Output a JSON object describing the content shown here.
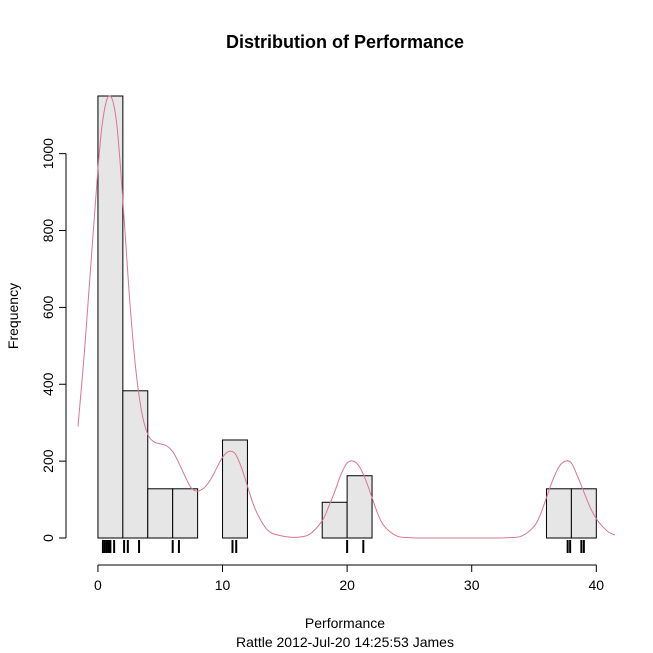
{
  "chart_data": {
    "type": "bar",
    "title": "Distribution of Performance",
    "xlabel": "Performance",
    "ylabel": "Frequency",
    "subtitle": "Rattle 2012-Jul-20 14:25:53 James",
    "xlim": [
      -1.6,
      41.5
    ],
    "ylim": [
      0,
      1150
    ],
    "x_ticks": [
      0,
      10,
      20,
      30,
      40
    ],
    "y_ticks": [
      0,
      200,
      400,
      600,
      800,
      1000
    ],
    "bins": [
      {
        "start": 0,
        "end": 2,
        "count": 1150
      },
      {
        "start": 2,
        "end": 4,
        "count": 383
      },
      {
        "start": 4,
        "end": 6,
        "count": 128
      },
      {
        "start": 6,
        "end": 8,
        "count": 128
      },
      {
        "start": 8,
        "end": 10,
        "count": 0
      },
      {
        "start": 10,
        "end": 12,
        "count": 255
      },
      {
        "start": 12,
        "end": 14,
        "count": 0
      },
      {
        "start": 14,
        "end": 16,
        "count": 0
      },
      {
        "start": 16,
        "end": 18,
        "count": 0
      },
      {
        "start": 18,
        "end": 20,
        "count": 93
      },
      {
        "start": 20,
        "end": 22,
        "count": 162
      },
      {
        "start": 22,
        "end": 24,
        "count": 0
      },
      {
        "start": 24,
        "end": 26,
        "count": 0
      },
      {
        "start": 26,
        "end": 28,
        "count": 0
      },
      {
        "start": 28,
        "end": 30,
        "count": 0
      },
      {
        "start": 30,
        "end": 32,
        "count": 0
      },
      {
        "start": 32,
        "end": 34,
        "count": 0
      },
      {
        "start": 34,
        "end": 36,
        "count": 0
      },
      {
        "start": 36,
        "end": 38,
        "count": 128
      },
      {
        "start": 38,
        "end": 40,
        "count": 128
      }
    ],
    "rug": [
      0.4,
      0.55,
      0.7,
      0.85,
      1.0,
      1.3,
      2.1,
      2.4,
      3.3,
      6.0,
      6.5,
      10.8,
      11.1,
      20.0,
      21.3,
      37.7,
      37.9,
      38.8,
      39.0
    ],
    "density": {
      "x": [
        -1.6,
        -1,
        0,
        0.5,
        1,
        1.5,
        2,
        2.5,
        3,
        3.5,
        4,
        4.5,
        5,
        5.5,
        6,
        6.5,
        7,
        7.5,
        8,
        8.5,
        9,
        9.5,
        10,
        10.5,
        11,
        11.5,
        12,
        12.5,
        13,
        13.5,
        14,
        15,
        16,
        17,
        18,
        18.5,
        19,
        19.5,
        20,
        20.5,
        21,
        21.5,
        22,
        22.5,
        23,
        24,
        25,
        26,
        28,
        30,
        32,
        33,
        34,
        35,
        35.5,
        36,
        36.5,
        37,
        37.5,
        38,
        38.5,
        39,
        39.5,
        40,
        40.5,
        41,
        41.5
      ],
      "y": [
        290,
        520,
        960,
        1110,
        1150,
        1080,
        880,
        640,
        450,
        330,
        270,
        250,
        245,
        240,
        225,
        195,
        160,
        130,
        122,
        130,
        150,
        180,
        210,
        225,
        220,
        185,
        135,
        85,
        50,
        25,
        12,
        4,
        2,
        10,
        45,
        80,
        120,
        165,
        195,
        200,
        185,
        150,
        105,
        60,
        30,
        5,
        1,
        0,
        0,
        0,
        0,
        1,
        5,
        30,
        60,
        105,
        150,
        185,
        200,
        195,
        160,
        120,
        80,
        50,
        30,
        15,
        8
      ],
      "color": "#d9768f"
    },
    "bar_fill": "#e6e6e6",
    "bar_stroke": "#000000"
  }
}
